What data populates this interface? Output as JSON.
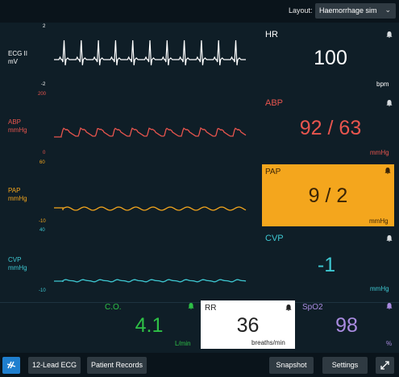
{
  "topbar": {
    "layout_label": "Layout:",
    "layout_value": "Haemorrhage sim"
  },
  "channels": {
    "ecg": {
      "name": "ECG II",
      "unit": "mV",
      "top": "2",
      "bottom": "-2",
      "color": "#ffffff"
    },
    "abp": {
      "name": "ABP",
      "unit": "mmHg",
      "top": "200",
      "bottom": "0",
      "color": "#e8554e"
    },
    "pap": {
      "name": "PAP",
      "unit": "mmHg",
      "top": "60",
      "bottom": "-10",
      "color": "#f4a61d"
    },
    "cvp": {
      "name": "CVP",
      "unit": "mmHg",
      "top": "40",
      "bottom": "-10",
      "color": "#3ec8d2"
    }
  },
  "params": {
    "hr": {
      "label": "HR",
      "value": "100",
      "unit": "bpm"
    },
    "abp": {
      "label": "ABP",
      "value": "92 / 63",
      "unit": "mmHg"
    },
    "pap": {
      "label": "PAP",
      "value": "9 / 2",
      "unit": "mmHg"
    },
    "cvp": {
      "label": "CVP",
      "value": "-1",
      "unit": "mmHg"
    },
    "co": {
      "label": "C.O.",
      "value": "4.1",
      "unit": "L/min",
      "color": "#2ec046"
    },
    "rr": {
      "label": "RR",
      "value": "36",
      "unit": "breaths/min"
    },
    "spo2": {
      "label": "SpO2",
      "value": "98",
      "unit": "%",
      "color": "#a98be0"
    }
  },
  "bottombar": {
    "ecg12": "12-Lead ECG",
    "records": "Patient Records",
    "snapshot": "Snapshot",
    "settings": "Settings"
  },
  "icons": [
    "bell-icon",
    "sim-logo-icon",
    "fullscreen-icon",
    "chevron-down-icon"
  ]
}
